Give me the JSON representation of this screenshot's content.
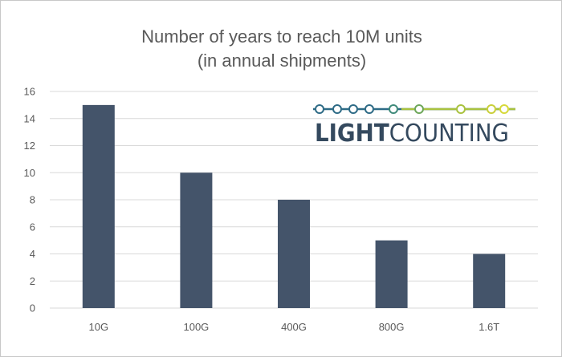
{
  "chart_data": {
    "type": "bar",
    "title_line1": "Number of years to reach 10M units",
    "title_line2": "(in annual shipments)",
    "categories": [
      "10G",
      "100G",
      "400G",
      "800G",
      "1.6T"
    ],
    "values": [
      15,
      10,
      8,
      5,
      4
    ],
    "ylim": [
      0,
      16
    ],
    "yticks": [
      0,
      2,
      4,
      6,
      8,
      10,
      12,
      14,
      16
    ],
    "grid": true,
    "bar_color": "#44546a",
    "grid_color": "#d9d9d9"
  },
  "logo": {
    "text_bold": "LIGHT",
    "text_regular": "COUNTING"
  }
}
